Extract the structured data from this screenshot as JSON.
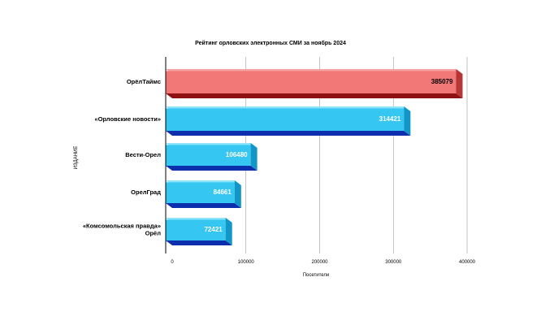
{
  "chart_data": {
    "type": "bar",
    "orientation": "horizontal",
    "title": "Рейтинг орловских электронных СМИ за ноябрь 2024",
    "xlabel": "Посетители",
    "ylabel": "ИЗДАНИЕ",
    "categories": [
      [
        "ОрёлТаймс"
      ],
      [
        "«Орловские новости»"
      ],
      [
        "Вести-Орел"
      ],
      [
        "ОрелГрад"
      ],
      [
        "«Комсомольская правда»",
        "Орёл"
      ]
    ],
    "values": [
      385079,
      314421,
      106480,
      84661,
      72421
    ],
    "data_labels": [
      "385079",
      "314421",
      "106480",
      "84661",
      "72421"
    ],
    "xlim": [
      0,
      400000
    ],
    "x_ticks": [
      "0",
      "100000",
      "200000",
      "300000",
      "400000"
    ],
    "x_tick_values": [
      0,
      100000,
      200000,
      300000,
      400000
    ],
    "grid": true,
    "colors": {
      "highlight_front": "#f27777",
      "highlight_top": "#f6a3a3",
      "highlight_side": "#b73535",
      "highlight_bottom": "#8f1111",
      "normal_front": "#35c7f1",
      "normal_top": "#8fe3fb",
      "normal_side": "#1296c8",
      "normal_bottom": "#0d2fae",
      "label_dark": "#000000",
      "label_light": "#ffffff"
    },
    "highlight_index": 0
  }
}
